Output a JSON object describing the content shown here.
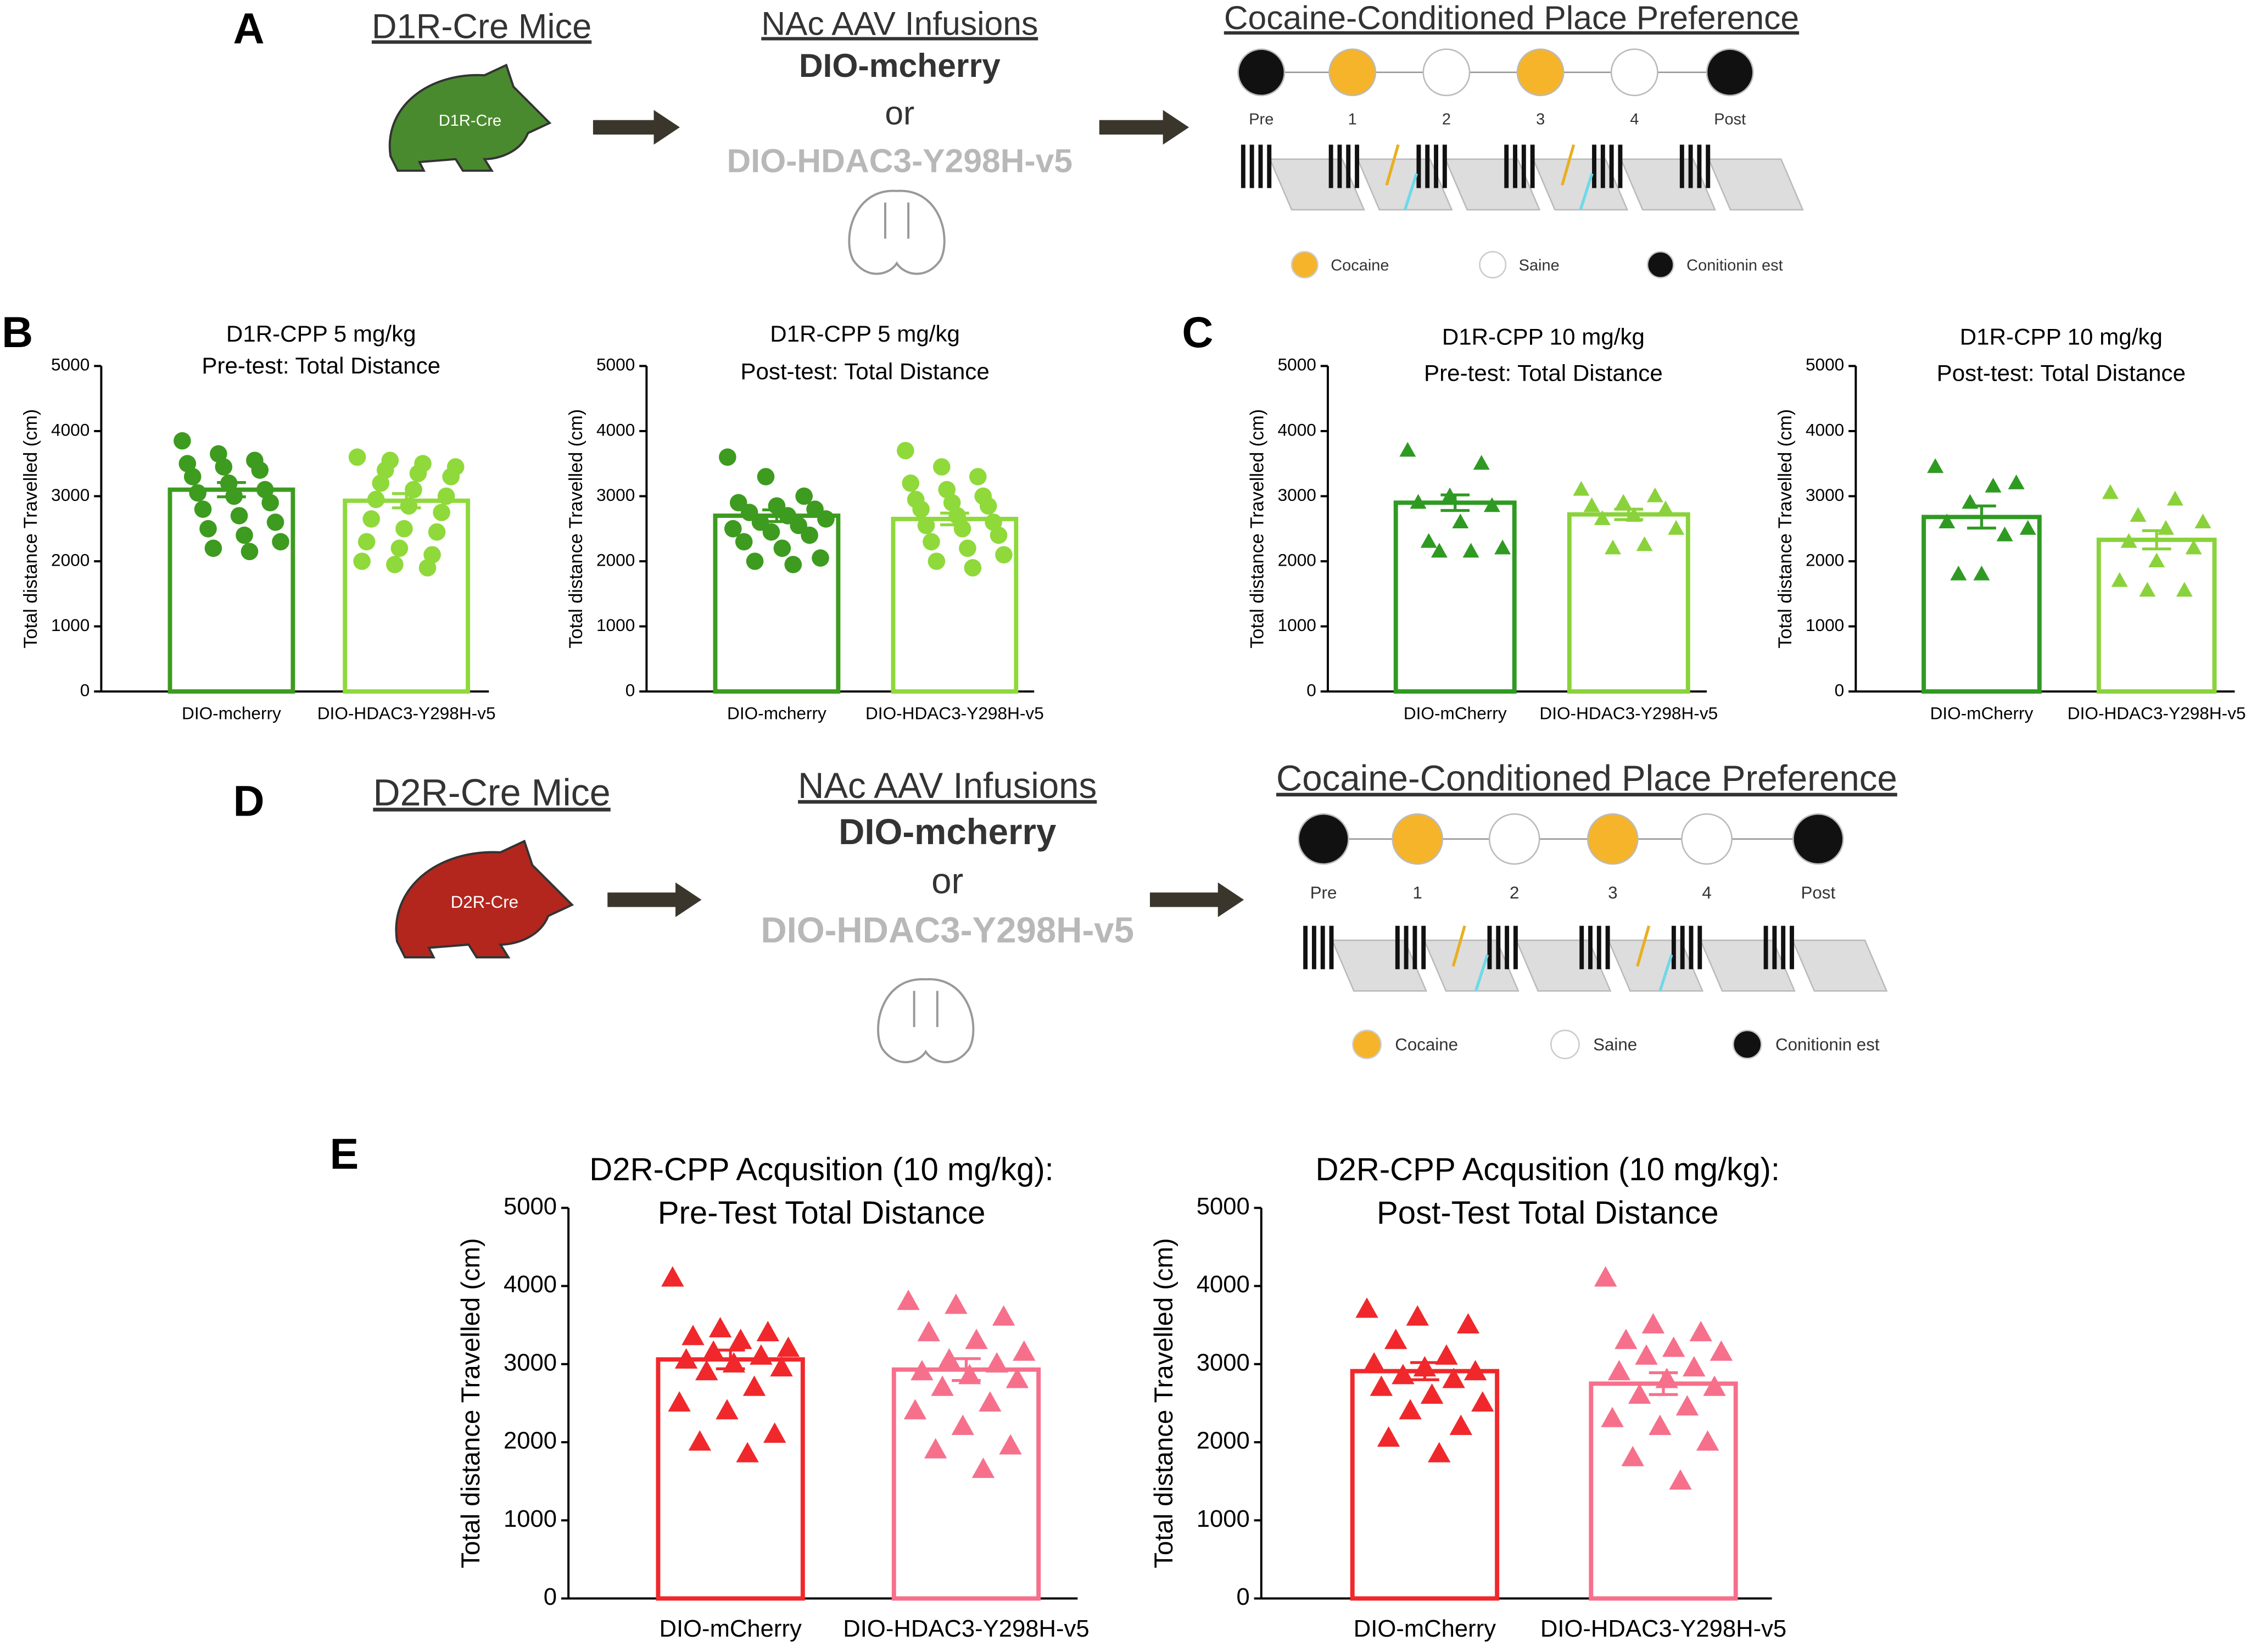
{
  "panel_labels": [
    "A",
    "B",
    "C",
    "D",
    "E"
  ],
  "schematics": [
    {
      "mice": "D1R-Cre Mice",
      "mouse_label": "D1R-Cre",
      "infusion_title": "NAc AAV Infusions",
      "virus1": "DIO-mcherry",
      "or": "or",
      "virus2": "DIO-HDAC3-Y298H-v5",
      "cpp_title": "Cocaine-Conditioned Place Preference",
      "days": [
        "Pre",
        "1",
        "2",
        "3",
        "4",
        "Post"
      ],
      "legend": [
        "Cocaine",
        "Saine",
        "Conitionin est"
      ]
    },
    {
      "mice": "D2R-Cre Mice",
      "mouse_label": "D2R-Cre",
      "infusion_title": "NAc AAV Infusions",
      "virus1": "DIO-mcherry",
      "or": "or",
      "virus2": "DIO-HDAC3-Y298H-v5",
      "cpp_title": "Cocaine-Conditioned Place Preference",
      "days": [
        "Pre",
        "1",
        "2",
        "3",
        "4",
        "Post"
      ],
      "legend": [
        "Cocaine",
        "Saine",
        "Conitionin est"
      ]
    }
  ],
  "chart_data": [
    {
      "type": "bar",
      "title": "D1R-CPP 5 mg/kg",
      "subtitle": "Pre-test: Total Distance",
      "ylabel": "Total distance Travelled (cm)",
      "categories": [
        "DIO-mcherry",
        "DIO-HDAC3-Y298H-v5"
      ],
      "values": [
        3100,
        2930
      ],
      "errors": [
        110,
        110
      ],
      "colors": [
        "#3d9b1f",
        "#8fd93b"
      ],
      "marker": "circle",
      "points": [
        [
          3850,
          3650,
          3550,
          3500,
          3450,
          3400,
          3300,
          3200,
          3100,
          3050,
          3000,
          2900,
          2800,
          2700,
          2600,
          2500,
          2400,
          2300,
          2200,
          2150
        ],
        [
          3600,
          3550,
          3500,
          3450,
          3400,
          3350,
          3300,
          3200,
          3100,
          3000,
          2950,
          2850,
          2750,
          2650,
          2500,
          2450,
          2300,
          2200,
          2100,
          2000,
          1950,
          1900
        ]
      ],
      "ylim": [
        0,
        5000
      ],
      "yticks": [
        0,
        1000,
        2000,
        3000,
        4000,
        5000
      ]
    },
    {
      "type": "bar",
      "title": "D1R-CPP 5 mg/kg",
      "subtitle": "Post-test: Total Distance",
      "ylabel": "Total distance Travelled (cm)",
      "categories": [
        "DIO-mcherry",
        "DIO-HDAC3-Y298H-v5"
      ],
      "values": [
        2700,
        2650
      ],
      "errors": [
        90,
        90
      ],
      "colors": [
        "#3d9b1f",
        "#8fd93b"
      ],
      "marker": "circle",
      "points": [
        [
          3600,
          3300,
          3000,
          2900,
          2850,
          2800,
          2750,
          2700,
          2650,
          2600,
          2550,
          2500,
          2450,
          2400,
          2300,
          2200,
          2050,
          2000,
          1950
        ],
        [
          3700,
          3450,
          3300,
          3200,
          3100,
          3000,
          2950,
          2900,
          2850,
          2800,
          2700,
          2600,
          2550,
          2500,
          2400,
          2300,
          2200,
          2100,
          2000,
          1900
        ]
      ],
      "ylim": [
        0,
        5000
      ],
      "yticks": [
        0,
        1000,
        2000,
        3000,
        4000,
        5000
      ]
    },
    {
      "type": "bar",
      "title": "D1R-CPP 10 mg/kg",
      "subtitle": "Pre-test: Total Distance",
      "ylabel": "Total distance Travelled (cm)",
      "categories": [
        "DIO-mCherry",
        "DIO-HDAC3-Y298H-v5"
      ],
      "values": [
        2900,
        2720
      ],
      "errors": [
        120,
        80
      ],
      "colors": [
        "#2f9a22",
        "#8ad23b"
      ],
      "marker": "triangle",
      "points": [
        [
          3700,
          3500,
          3000,
          2900,
          2850,
          2600,
          2300,
          2200,
          2150,
          2150
        ],
        [
          3100,
          3000,
          2900,
          2850,
          2800,
          2700,
          2650,
          2500,
          2250,
          2200
        ]
      ],
      "ylim": [
        0,
        5000
      ],
      "yticks": [
        0,
        1000,
        2000,
        3000,
        4000,
        5000
      ]
    },
    {
      "type": "bar",
      "title": "D1R-CPP 10 mg/kg",
      "subtitle": "Post-test: Total Distance",
      "ylabel": "Total distance Travelled (cm)",
      "categories": [
        "DIO-mCherry",
        "DIO-HDAC3-Y298H-v5"
      ],
      "values": [
        2680,
        2330
      ],
      "errors": [
        170,
        140
      ],
      "colors": [
        "#2f9a22",
        "#8ad23b"
      ],
      "marker": "triangle",
      "points": [
        [
          3450,
          3200,
          3150,
          2900,
          2600,
          2500,
          2400,
          1800,
          1800
        ],
        [
          3050,
          2950,
          2700,
          2600,
          2500,
          2300,
          2200,
          2000,
          1700,
          1550,
          1550
        ]
      ],
      "ylim": [
        0,
        5000
      ],
      "yticks": [
        0,
        1000,
        2000,
        3000,
        4000,
        5000
      ]
    },
    {
      "type": "bar",
      "title": "D2R-CPP Acqusition (10 mg/kg):",
      "subtitle": "Pre-Test Total Distance",
      "ylabel": "Total distance Travelled (cm)",
      "categories": [
        "DIO-mCherry",
        "DIO-HDAC3-Y298H-v5"
      ],
      "values": [
        3060,
        2930
      ],
      "errors": [
        120,
        140
      ],
      "colors": [
        "#f0282b",
        "#f6708c"
      ],
      "marker": "triangle",
      "points": [
        [
          4100,
          3450,
          3400,
          3350,
          3300,
          3200,
          3150,
          3100,
          3050,
          3000,
          2950,
          2900,
          2700,
          2500,
          2400,
          2100,
          2000,
          1850
        ],
        [
          3800,
          3750,
          3600,
          3400,
          3300,
          3150,
          3050,
          3000,
          2900,
          2850,
          2800,
          2700,
          2500,
          2400,
          2200,
          1950,
          1900,
          1650
        ]
      ],
      "ylim": [
        0,
        5000
      ],
      "yticks": [
        0,
        1000,
        2000,
        3000,
        4000,
        5000
      ]
    },
    {
      "type": "bar",
      "title": "D2R-CPP Acqusition (10 mg/kg):",
      "subtitle": "Post-Test Total Distance",
      "ylabel": "Total distance Travelled (cm)",
      "categories": [
        "DIO-mCherry",
        "DIO-HDAC3-Y298H-v5"
      ],
      "values": [
        2910,
        2750
      ],
      "errors": [
        110,
        140
      ],
      "colors": [
        "#f0282b",
        "#f6708c"
      ],
      "marker": "triangle",
      "points": [
        [
          3700,
          3600,
          3500,
          3300,
          3100,
          3000,
          2950,
          2900,
          2850,
          2800,
          2700,
          2600,
          2500,
          2400,
          2200,
          2050,
          1850
        ],
        [
          4100,
          3500,
          3400,
          3300,
          3200,
          3150,
          3100,
          2950,
          2900,
          2800,
          2700,
          2600,
          2450,
          2300,
          2200,
          2000,
          1800,
          1500
        ]
      ],
      "ylim": [
        0,
        5000
      ],
      "yticks": [
        0,
        1000,
        2000,
        3000,
        4000,
        5000
      ]
    }
  ]
}
